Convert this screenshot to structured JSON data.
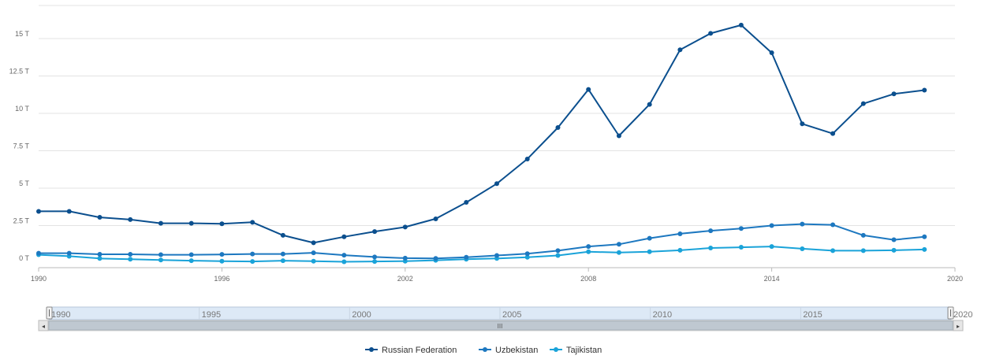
{
  "chart_data": {
    "type": "line",
    "title": "",
    "xlabel": "",
    "ylabel": "",
    "xlim": [
      1990,
      2020
    ],
    "ylim": [
      0,
      17.5
    ],
    "y_unit_suffix": " T",
    "y_ticks": [
      0,
      2.5,
      5,
      7.5,
      10,
      12.5,
      15
    ],
    "y_tick_labels": [
      "0 T",
      "2.5 T",
      "5 T",
      "7.5 T",
      "10 T",
      "12.5 T",
      "15 T"
    ],
    "x_ticks": [
      1990,
      1996,
      2002,
      2008,
      2014,
      2020
    ],
    "x_tick_labels": [
      "1990",
      "1996",
      "2002",
      "2008",
      "2014",
      "2020"
    ],
    "grid": "horizontal",
    "legend_position": "bottom-center",
    "x": [
      1990,
      1991,
      1992,
      1993,
      1994,
      1995,
      1996,
      1997,
      1998,
      1999,
      2000,
      2001,
      2002,
      2003,
      2004,
      2005,
      2006,
      2007,
      2008,
      2009,
      2010,
      2011,
      2012,
      2013,
      2014,
      2015,
      2016,
      2017,
      2018,
      2019
    ],
    "series": [
      {
        "name": "Russian Federation",
        "color": "#0b4f8e",
        "values": [
          3.45,
          3.45,
          3.05,
          2.9,
          2.65,
          2.65,
          2.62,
          2.72,
          1.85,
          1.35,
          1.75,
          2.1,
          2.4,
          2.95,
          4.05,
          5.3,
          6.95,
          9.05,
          11.6,
          8.5,
          10.6,
          14.25,
          15.35,
          15.9,
          14.05,
          9.3,
          8.65,
          10.65,
          11.3,
          11.55
        ]
      },
      {
        "name": "Uzbekistan",
        "color": "#1d78c0",
        "values": [
          0.65,
          0.65,
          0.58,
          0.58,
          0.55,
          0.55,
          0.57,
          0.6,
          0.6,
          0.68,
          0.52,
          0.4,
          0.32,
          0.3,
          0.38,
          0.5,
          0.62,
          0.82,
          1.1,
          1.25,
          1.65,
          1.95,
          2.15,
          2.3,
          2.5,
          2.6,
          2.55,
          1.85,
          1.55,
          1.75
        ]
      },
      {
        "name": "Tajikistan",
        "color": "#1aa3d9",
        "values": [
          0.55,
          0.45,
          0.3,
          0.25,
          0.2,
          0.15,
          0.12,
          0.1,
          0.15,
          0.12,
          0.08,
          0.1,
          0.12,
          0.18,
          0.25,
          0.3,
          0.38,
          0.5,
          0.75,
          0.7,
          0.75,
          0.85,
          1.0,
          1.05,
          1.1,
          0.95,
          0.82,
          0.82,
          0.85,
          0.9
        ]
      }
    ]
  },
  "navigator": {
    "labels": [
      "1990",
      "1995",
      "2000",
      "2005",
      "2010",
      "2015",
      "2020"
    ],
    "scroll_grip": "III",
    "left_arrow": "◂",
    "right_arrow": "▸",
    "range": [
      1990,
      2020
    ]
  },
  "legend": {
    "items": [
      "Russian Federation",
      "Uzbekistan",
      "Tajikistan"
    ]
  }
}
